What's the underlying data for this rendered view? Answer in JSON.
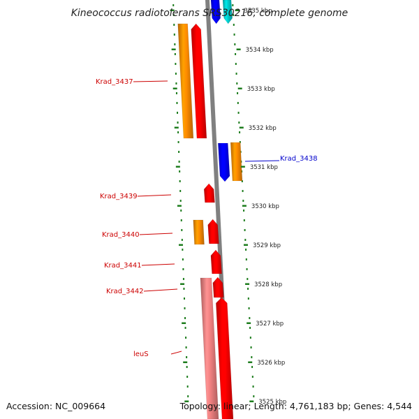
{
  "title": "Kineococcus radiotolerans SRS30216, complete genome",
  "accession": "Accession: NC_009664",
  "summary": "Topology: linear; Length: 4,761,183 bp; Genes: 4,544",
  "colors": {
    "backbone": "#808080",
    "tick": "#1e7d1e",
    "cds_forward": "#ff0000",
    "gene_forward": "#ff8c00",
    "cds_reverse": "#0000ff",
    "gene_reverse": "#ff8c00",
    "rna_forward": "#f08080",
    "other_reverse": "#00cccc",
    "label_forward": "#cc0000",
    "label_reverse": "#0000cc"
  },
  "ticks": [
    {
      "id": "t3535",
      "label": "3535 kbp"
    },
    {
      "id": "t3534",
      "label": "3534 kbp"
    },
    {
      "id": "t3533",
      "label": "3533 kbp"
    },
    {
      "id": "t3532",
      "label": "3532 kbp"
    },
    {
      "id": "t3531",
      "label": "3531 kbp"
    },
    {
      "id": "t3530",
      "label": "3530 kbp"
    },
    {
      "id": "t3529",
      "label": "3529 kbp"
    },
    {
      "id": "t3528",
      "label": "3528 kbp"
    },
    {
      "id": "t3527",
      "label": "3527 kbp"
    },
    {
      "id": "t3526",
      "label": "3526 kbp"
    },
    {
      "id": "t3525",
      "label": "3525 kbp"
    }
  ],
  "labels": [
    {
      "id": "krad3437",
      "text": "Krad_3437",
      "strand": "forward"
    },
    {
      "id": "krad3438",
      "text": "Krad_3438",
      "strand": "reverse"
    },
    {
      "id": "krad3439",
      "text": "Krad_3439",
      "strand": "forward"
    },
    {
      "id": "krad3440",
      "text": "Krad_3440",
      "strand": "forward"
    },
    {
      "id": "krad3441",
      "text": "Krad_3441",
      "strand": "forward"
    },
    {
      "id": "krad3442",
      "text": "Krad_3442",
      "strand": "forward"
    },
    {
      "id": "leus",
      "text": "leuS",
      "strand": "forward"
    }
  ]
}
